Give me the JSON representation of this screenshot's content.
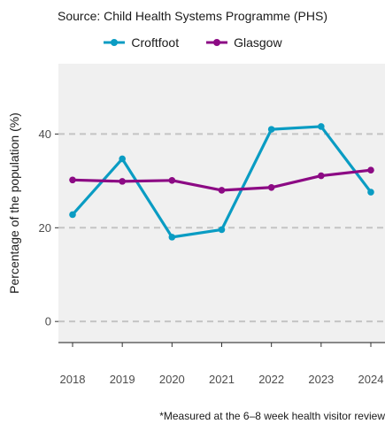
{
  "chart_data": {
    "type": "line",
    "subtitle": "Source: Child Health Systems Programme (PHS)",
    "caption": "*Measured at the 6–8 week health visitor review",
    "ylabel": "Percentage of the population (%)",
    "xlabel": "",
    "x": [
      "2018",
      "2019",
      "2020",
      "2021",
      "2022",
      "2023",
      "2024"
    ],
    "ylim": [
      -4.5,
      55
    ],
    "yticks": [
      0,
      20,
      40
    ],
    "grid": "horizontal dashed",
    "legend_position": "top",
    "series": [
      {
        "name": "Croftfoot",
        "color": "#0a9cc3",
        "values": [
          22.8,
          34.7,
          18.0,
          19.6,
          41.0,
          41.6,
          27.6
        ]
      },
      {
        "name": "Glasgow",
        "color": "#8c0a84",
        "values": [
          30.2,
          29.9,
          30.1,
          28.0,
          28.6,
          31.1,
          32.3
        ]
      }
    ]
  }
}
